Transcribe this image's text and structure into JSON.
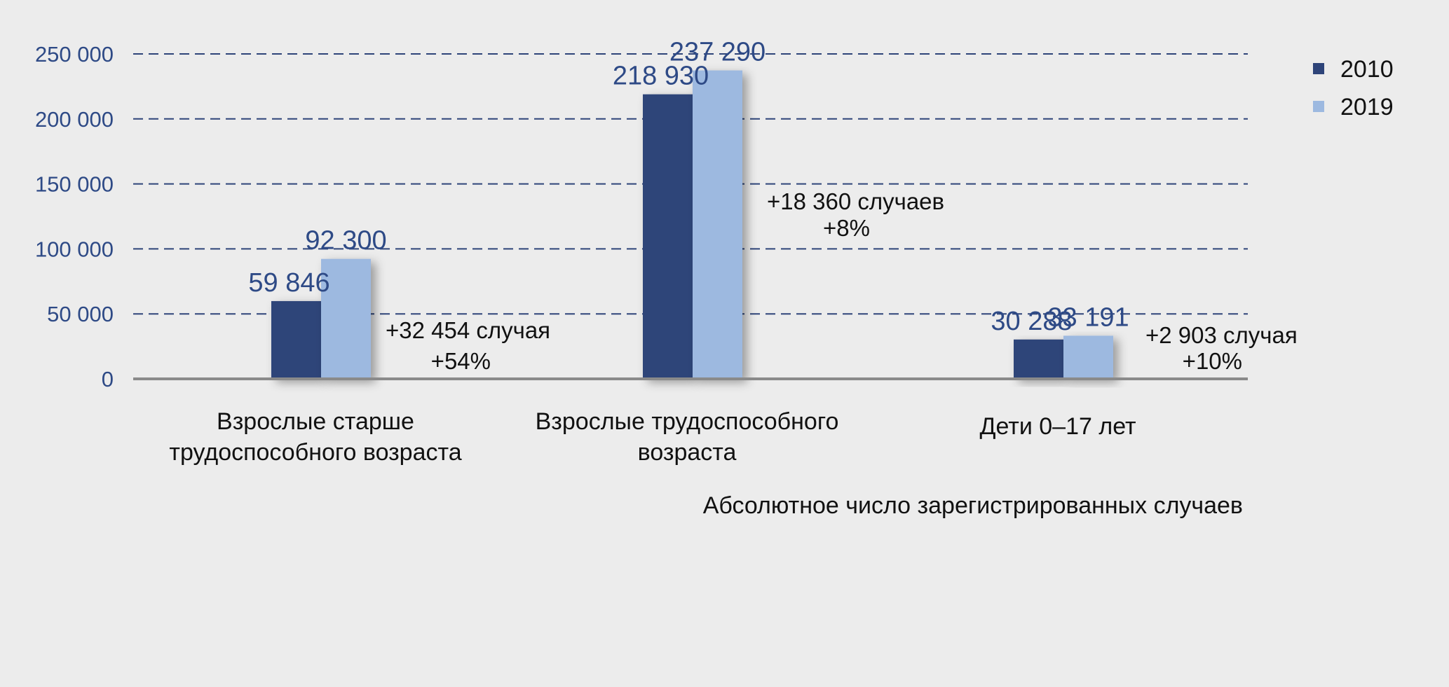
{
  "chart_data": {
    "type": "bar",
    "categories": [
      [
        "Взрослые старше",
        "трудоспособного возраста"
      ],
      [
        "Взрослые трудоспособного",
        "возраста"
      ],
      [
        "Дети 0–17 лет"
      ]
    ],
    "series": [
      {
        "name": "2010",
        "color": "#2e4479",
        "values": [
          59846,
          218930,
          30288
        ],
        "value_labels": [
          "59 846",
          "218 930",
          "30 288"
        ]
      },
      {
        "name": "2019",
        "color": "#9db9e0",
        "values": [
          92300,
          237290,
          33191
        ],
        "value_labels": [
          "92 300",
          "237 290",
          "33 191"
        ]
      }
    ],
    "changes": [
      [
        "+32 454 случая",
        "+54%"
      ],
      [
        "+18 360 случаев",
        "+8%"
      ],
      [
        "+2 903 случая",
        "+10%"
      ]
    ],
    "y_ticks": [
      0,
      50000,
      100000,
      150000,
      200000,
      250000
    ],
    "y_tick_labels": [
      "0",
      "50 000",
      "100 000",
      "150 000",
      "200 000",
      "250 000"
    ],
    "ylim": [
      0,
      250000
    ],
    "grid": true,
    "legend_position": "top-right",
    "caption": "Абсолютное число зарегистрированных случаев",
    "xlabel": "",
    "ylabel": "",
    "title": ""
  }
}
